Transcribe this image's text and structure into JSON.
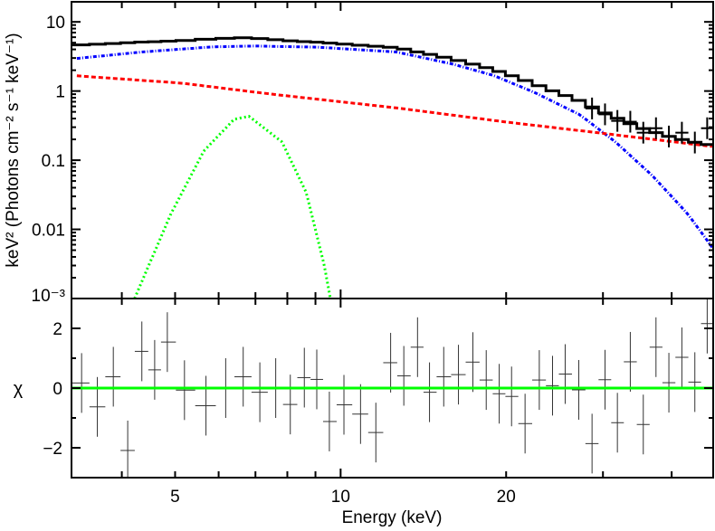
{
  "chart_data": [
    {
      "type": "line",
      "panel": "spectrum",
      "xlabel": "",
      "ylabel": "keV² (Photons cm⁻² s⁻¹ keV⁻¹)",
      "xscale": "log",
      "yscale": "log",
      "xlim": [
        3.24,
        47.6
      ],
      "ylim": [
        0.001,
        19.5
      ],
      "y_ticks": [
        {
          "value": 10,
          "label": "10"
        },
        {
          "value": 1,
          "label": "1"
        },
        {
          "value": 0.1,
          "label": "0.1"
        },
        {
          "value": 0.01,
          "label": "0.01"
        },
        {
          "value": 0.001,
          "label": "10⁻³"
        }
      ],
      "series": [
        {
          "color": "#0000ff",
          "style": "dotted-dash",
          "x": [
            3.24,
            4.35,
            5.84,
            6.95,
            9.06,
            12.64,
            16.0,
            18.97,
            22.49,
            27.2,
            31.6,
            36.8,
            42.8,
            47.4
          ],
          "y": [
            2.91,
            3.67,
            4.35,
            4.48,
            4.31,
            3.67,
            2.45,
            1.68,
            0.96,
            0.457,
            0.184,
            0.061,
            0.0167,
            0.0055
          ]
        },
        {
          "color": "#ff0000",
          "style": "dashed",
          "x": [
            3.24,
            5.14,
            7.5,
            12.64,
            20.08,
            29.3,
            47.4
          ],
          "y": [
            1.68,
            1.3,
            0.9,
            0.57,
            0.355,
            0.25,
            0.158
          ]
        },
        {
          "color": "#00ff00",
          "style": "dotted",
          "x": [
            4.22,
            4.91,
            5.64,
            6.4,
            6.81,
            7.82,
            8.66,
            9.34,
            9.58
          ],
          "y": [
            0.001,
            0.0166,
            0.136,
            0.39,
            0.432,
            0.184,
            0.034,
            0.003,
            0.001
          ]
        }
      ],
      "data_points": {
        "color": "#000000",
        "x": [
          28.66,
          30.26,
          31.87,
          33.64,
          35.52,
          37.46,
          39.54,
          41.75,
          44.08,
          46.42
        ],
        "y": [
          0.56,
          0.46,
          0.37,
          0.36,
          0.25,
          0.29,
          0.22,
          0.25,
          0.18,
          0.29
        ]
      }
    },
    {
      "type": "scatter",
      "panel": "residuals",
      "xlabel": "Energy (keV)",
      "ylabel": "χ",
      "xscale": "log",
      "xlim": [
        3.24,
        47.6
      ],
      "ylim": [
        -3,
        3
      ],
      "x_ticks": [
        {
          "value": 5,
          "label": "5"
        },
        {
          "value": 10,
          "label": "10"
        },
        {
          "value": 20,
          "label": "20"
        }
      ],
      "y_ticks": [
        {
          "value": 2,
          "label": "2"
        },
        {
          "value": 0,
          "label": "0"
        },
        {
          "value": -2,
          "label": "−2"
        }
      ],
      "zero_line_color": "#00ff00",
      "x": [
        3.38,
        3.61,
        3.86,
        4.1,
        4.35,
        4.59,
        4.84,
        5.2,
        5.69,
        6.18,
        6.65,
        7.13,
        7.62,
        8.1,
        8.59,
        9.05,
        9.54,
        10.14,
        10.87,
        11.59,
        12.33,
        13.03,
        13.8,
        14.51,
        15.4,
        16.38,
        17.4,
        18.4,
        19.43,
        20.46,
        21.65,
        22.98,
        24.29,
        25.61,
        27.11,
        28.66,
        30.26,
        31.87,
        33.64,
        35.52,
        37.46,
        39.54,
        41.75,
        44.08,
        46.42
      ],
      "y": [
        0.17,
        -0.63,
        0.38,
        -2.09,
        1.23,
        0.61,
        1.54,
        -0.07,
        -0.59,
        0.0,
        0.38,
        -0.14,
        0.0,
        -0.55,
        0.35,
        0.29,
        -1.12,
        -0.56,
        -0.87,
        -1.49,
        0.85,
        0.41,
        1.37,
        -0.14,
        0.38,
        0.45,
        0.87,
        0.27,
        -0.19,
        -0.28,
        -1.19,
        0.27,
        0.08,
        0.47,
        -0.06,
        -1.86,
        0.28,
        -1.16,
        0.88,
        -1.22,
        1.37,
        0.18,
        1.03,
        0.2,
        2.16
      ],
      "yerr": 1.0
    }
  ]
}
